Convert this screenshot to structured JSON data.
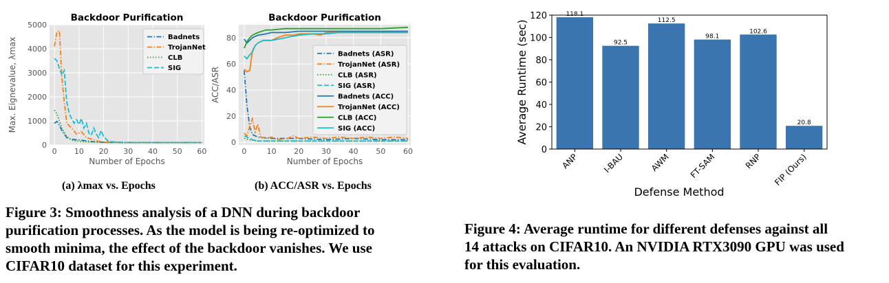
{
  "figure3": {
    "subcaption_a": "(a) λmax vs. Epochs",
    "subcaption_b": "(b) ACC/ASR vs. Epochs",
    "caption_lines": [
      "Figure 3: Smoothness analysis of a DNN during backdoor",
      "purification processes. As the model is being re-optimized to",
      "smooth minima, the effect of the backdoor vanishes. We use",
      "CIFAR10 dataset for this experiment."
    ]
  },
  "figure4": {
    "caption_lines": [
      "Figure 4: Average runtime for different defenses against all",
      "14 attacks on CIFAR10. An NVIDIA RTX3090 GPU was used",
      "for this evaluation."
    ]
  },
  "colors": {
    "blue": "#1f77b4",
    "orange": "#ff7f0e",
    "green": "#2ca02c",
    "cyan": "#17becf",
    "bar": "#3a75b0",
    "panel": "#e5e5e5"
  },
  "chart_data": [
    {
      "type": "line",
      "title": "Backdoor Purification",
      "xlabel": "Number of Epochs",
      "ylabel": "Max. Eignevalue, λmax",
      "xlim": [
        -2,
        61
      ],
      "ylim": [
        0,
        5000
      ],
      "xticks": [
        0,
        10,
        20,
        30,
        40,
        50,
        60
      ],
      "yticks": [
        0,
        1000,
        2000,
        3000,
        4000,
        5000
      ],
      "grid": true,
      "legend_position": "top-right",
      "series": [
        {
          "name": "Badnets",
          "style": "dashdot",
          "color": "#1f77b4",
          "points": [
            [
              0,
              900
            ],
            [
              1,
              980
            ],
            [
              2,
              820
            ],
            [
              3,
              600
            ],
            [
              5,
              300
            ],
            [
              7,
              230
            ],
            [
              10,
              210
            ],
            [
              13,
              170
            ],
            [
              16,
              130
            ],
            [
              20,
              110
            ],
            [
              30,
              100
            ],
            [
              40,
              100
            ],
            [
              50,
              100
            ],
            [
              60,
              100
            ]
          ]
        },
        {
          "name": "TrojanNet",
          "style": "dashdot",
          "color": "#ff7f0e",
          "points": [
            [
              0,
              4100
            ],
            [
              1,
              4700
            ],
            [
              2,
              4750
            ],
            [
              3,
              2800
            ],
            [
              4,
              1800
            ],
            [
              5,
              900
            ],
            [
              7,
              700
            ],
            [
              9,
              450
            ],
            [
              11,
              550
            ],
            [
              13,
              300
            ],
            [
              15,
              250
            ],
            [
              18,
              150
            ],
            [
              20,
              120
            ],
            [
              30,
              100
            ],
            [
              40,
              100
            ],
            [
              50,
              100
            ],
            [
              60,
              100
            ]
          ]
        },
        {
          "name": "CLB",
          "style": "dotted",
          "color": "#2ca02c",
          "points": [
            [
              0,
              1450
            ],
            [
              1,
              1300
            ],
            [
              2,
              1000
            ],
            [
              3,
              700
            ],
            [
              5,
              350
            ],
            [
              7,
              200
            ],
            [
              10,
              150
            ],
            [
              15,
              120
            ],
            [
              20,
              100
            ],
            [
              30,
              100
            ],
            [
              40,
              100
            ],
            [
              50,
              100
            ],
            [
              60,
              100
            ]
          ]
        },
        {
          "name": "SIG",
          "style": "dashed",
          "color": "#17becf",
          "points": [
            [
              0,
              3600
            ],
            [
              1,
              3500
            ],
            [
              2,
              3200
            ],
            [
              3,
              2900
            ],
            [
              4,
              3100
            ],
            [
              5,
              1800
            ],
            [
              6,
              1300
            ],
            [
              7,
              1100
            ],
            [
              8,
              900
            ],
            [
              9,
              1050
            ],
            [
              10,
              850
            ],
            [
              11,
              1100
            ],
            [
              12,
              700
            ],
            [
              13,
              900
            ],
            [
              14,
              500
            ],
            [
              15,
              400
            ],
            [
              16,
              700
            ],
            [
              17,
              450
            ],
            [
              18,
              300
            ],
            [
              19,
              600
            ],
            [
              20,
              350
            ],
            [
              21,
              250
            ],
            [
              22,
              150
            ],
            [
              25,
              120
            ],
            [
              30,
              100
            ],
            [
              40,
              100
            ],
            [
              50,
              100
            ],
            [
              60,
              100
            ]
          ]
        }
      ]
    },
    {
      "type": "line",
      "title": "Backdoor Purification",
      "xlabel": "Number of Epochs",
      "ylabel": "ACC/ASR",
      "xlim": [
        -2,
        61
      ],
      "ylim": [
        -2,
        90
      ],
      "xticks": [
        0,
        10,
        20,
        30,
        40,
        50,
        60
      ],
      "yticks": [
        0,
        20,
        40,
        60,
        80
      ],
      "grid": true,
      "legend_position": "right",
      "series": [
        {
          "name": "Badnets (ASR)",
          "style": "dashdot",
          "color": "#1f77b4",
          "points": [
            [
              0,
              55
            ],
            [
              1,
              28
            ],
            [
              2,
              12
            ],
            [
              3,
              6
            ],
            [
              5,
              4
            ],
            [
              10,
              3
            ],
            [
              20,
              3
            ],
            [
              30,
              2
            ],
            [
              40,
              3
            ],
            [
              50,
              2
            ],
            [
              60,
              2
            ]
          ]
        },
        {
          "name": "TrojanNet (ASR)",
          "style": "dashdot",
          "color": "#ff7f0e",
          "points": [
            [
              0,
              7
            ],
            [
              1,
              5
            ],
            [
              2,
              12
            ],
            [
              3,
              18
            ],
            [
              4,
              8
            ],
            [
              5,
              14
            ],
            [
              6,
              4
            ],
            [
              8,
              3
            ],
            [
              10,
              4
            ],
            [
              12,
              2
            ],
            [
              16,
              3
            ],
            [
              18,
              5
            ],
            [
              20,
              3
            ],
            [
              25,
              4
            ],
            [
              30,
              3
            ],
            [
              35,
              4
            ],
            [
              40,
              3
            ],
            [
              45,
              4
            ],
            [
              50,
              3
            ],
            [
              55,
              4
            ],
            [
              60,
              3
            ]
          ]
        },
        {
          "name": "CLB (ASR)",
          "style": "dotted",
          "color": "#2ca02c",
          "points": [
            [
              0,
              3
            ],
            [
              2,
              2
            ],
            [
              5,
              1
            ],
            [
              10,
              1
            ],
            [
              20,
              1
            ],
            [
              30,
              1
            ],
            [
              40,
              1
            ],
            [
              50,
              1
            ],
            [
              60,
              1
            ]
          ]
        },
        {
          "name": "SIG (ASR)",
          "style": "dashed",
          "color": "#17becf",
          "points": [
            [
              0,
              5
            ],
            [
              1,
              4
            ],
            [
              2,
              3
            ],
            [
              3,
              2
            ],
            [
              5,
              1
            ],
            [
              10,
              1
            ],
            [
              20,
              1
            ],
            [
              30,
              1
            ],
            [
              40,
              1
            ],
            [
              50,
              1
            ],
            [
              60,
              1
            ]
          ]
        },
        {
          "name": "Badnets (ACC)",
          "style": "solid",
          "color": "#1f77b4",
          "points": [
            [
              0,
              79
            ],
            [
              1,
              76
            ],
            [
              2,
              78
            ],
            [
              3,
              80
            ],
            [
              5,
              82
            ],
            [
              8,
              83
            ],
            [
              10,
              84
            ],
            [
              15,
              84
            ],
            [
              20,
              85
            ],
            [
              30,
              85
            ],
            [
              40,
              85
            ],
            [
              50,
              85
            ],
            [
              60,
              85
            ]
          ]
        },
        {
          "name": "TrojanNet (ACC)",
          "style": "solid",
          "color": "#ff7f0e",
          "points": [
            [
              0,
              56
            ],
            [
              1,
              54
            ],
            [
              2,
              55
            ],
            [
              3,
              70
            ],
            [
              4,
              74
            ],
            [
              5,
              76
            ],
            [
              7,
              78
            ],
            [
              10,
              78
            ],
            [
              12,
              80
            ],
            [
              15,
              82
            ],
            [
              18,
              82
            ],
            [
              20,
              83
            ],
            [
              25,
              83
            ],
            [
              28,
              82
            ],
            [
              30,
              84
            ],
            [
              35,
              84
            ],
            [
              40,
              84
            ],
            [
              50,
              84
            ],
            [
              60,
              84
            ]
          ]
        },
        {
          "name": "CLB (ACC)",
          "style": "solid",
          "color": "#2ca02c",
          "points": [
            [
              0,
              72
            ],
            [
              1,
              77
            ],
            [
              2,
              80
            ],
            [
              3,
              82
            ],
            [
              5,
              84
            ],
            [
              8,
              86
            ],
            [
              10,
              86
            ],
            [
              15,
              87
            ],
            [
              20,
              87
            ],
            [
              30,
              87
            ],
            [
              40,
              87
            ],
            [
              50,
              87
            ],
            [
              60,
              88
            ]
          ]
        },
        {
          "name": "SIG (ACC)",
          "style": "solid",
          "color": "#17becf",
          "points": [
            [
              0,
              66
            ],
            [
              1,
              64
            ],
            [
              2,
              67
            ],
            [
              3,
              69
            ],
            [
              4,
              74
            ],
            [
              5,
              76
            ],
            [
              7,
              78
            ],
            [
              10,
              78
            ],
            [
              15,
              80
            ],
            [
              20,
              82
            ],
            [
              25,
              83
            ],
            [
              30,
              83
            ],
            [
              35,
              84
            ],
            [
              40,
              84
            ],
            [
              50,
              84
            ],
            [
              60,
              84
            ]
          ]
        }
      ]
    },
    {
      "type": "bar",
      "xlabel": "Defense Method",
      "ylabel": "Average Runtime (sec)",
      "categories": [
        "ANP",
        "I-BAU",
        "AWM",
        "FT-SAM",
        "RNP",
        "FIP (Ours)"
      ],
      "values": [
        118.1,
        92.5,
        112.5,
        98.1,
        102.6,
        20.8
      ],
      "value_labels": [
        "118.1",
        "92.5",
        "112.5",
        "98.1",
        "102.6",
        "20.8"
      ],
      "ylim": [
        0,
        120
      ],
      "yticks": [
        0,
        20,
        40,
        60,
        80,
        100,
        120
      ],
      "grid": false
    }
  ]
}
